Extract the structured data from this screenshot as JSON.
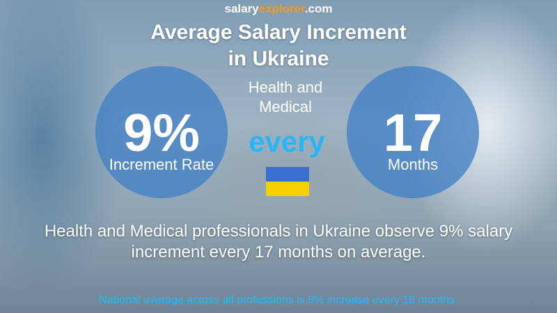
{
  "logo": {
    "part1": "salary",
    "part2": "explorer",
    "part3": ".com"
  },
  "title_lines": [
    "Average Salary Increment",
    "in Ukraine"
  ],
  "subtitle": "Health and Medical",
  "left_circle": {
    "value": "9%",
    "label": "Increment Rate"
  },
  "connector": "every",
  "right_circle": {
    "value": "17",
    "label": "Months"
  },
  "description": "Health and Medical professionals in Ukraine observe 9% salary increment every 17 months on average.",
  "footnote": "National average across all professions is 8% increase every 18 months."
}
